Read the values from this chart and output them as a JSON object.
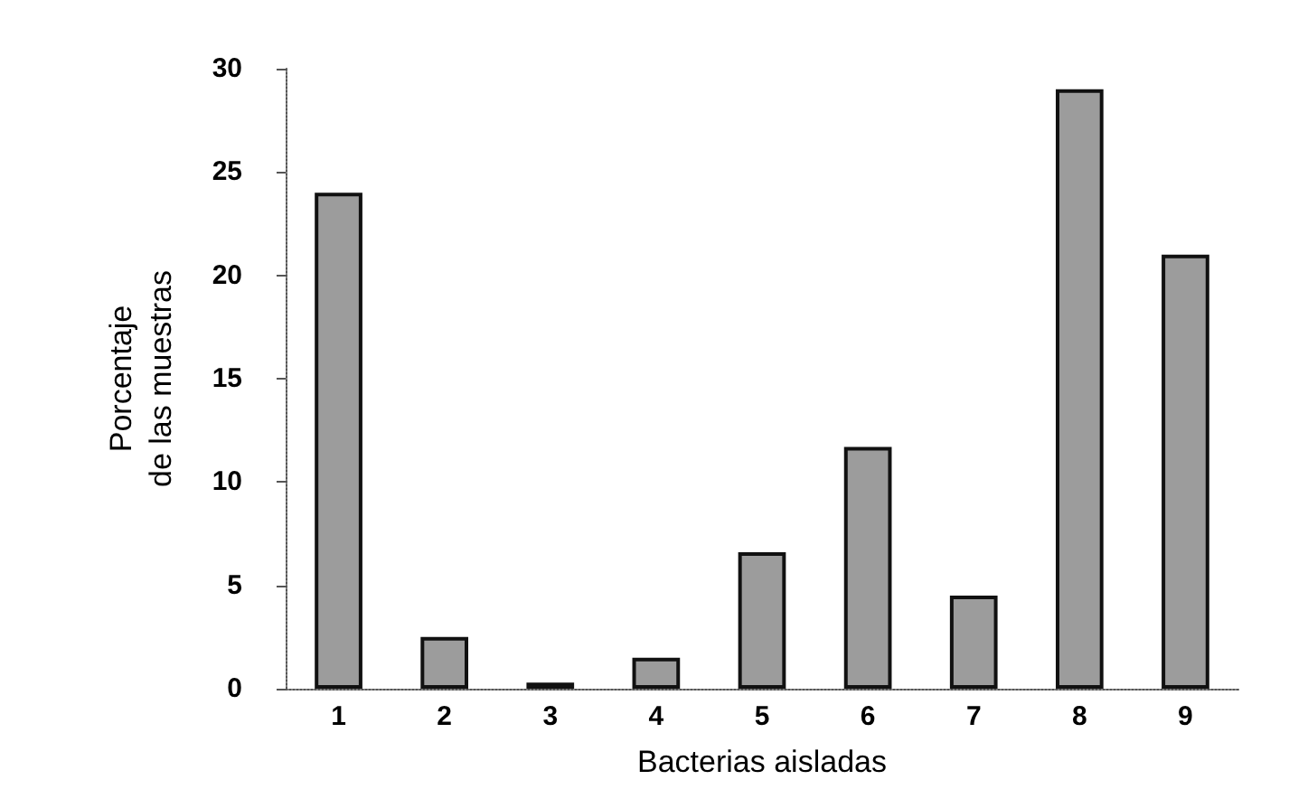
{
  "chart_data": {
    "type": "bar",
    "xlabel": "Bacterias aisladas",
    "ylabel": "Porcentaje\nde las muestras",
    "categories": [
      "1",
      "2",
      "3",
      "4",
      "5",
      "6",
      "7",
      "8",
      "9"
    ],
    "values": [
      24,
      2.5,
      0.3,
      1.5,
      6.6,
      11.7,
      4.5,
      29,
      21
    ],
    "color": "#9c9c9c",
    "ylim": [
      0,
      30
    ],
    "yticks": [
      0,
      5,
      10,
      15,
      20,
      25,
      30
    ],
    "grid": false
  }
}
